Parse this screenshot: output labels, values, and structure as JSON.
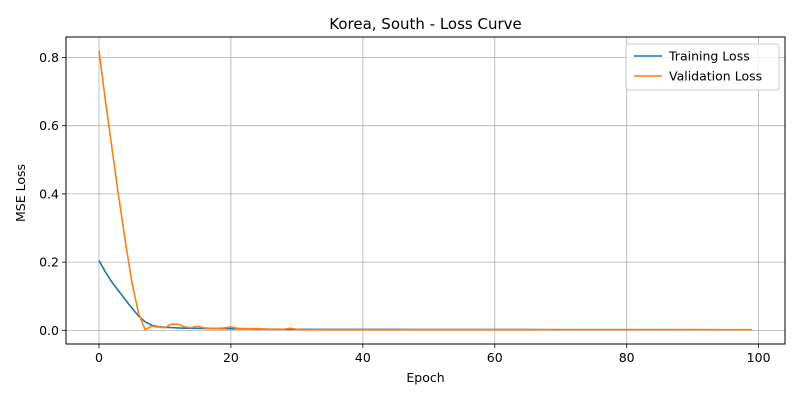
{
  "chart_data": {
    "type": "line",
    "title": "Korea, South - Loss Curve",
    "xlabel": "Epoch",
    "ylabel": "MSE Loss",
    "xlim": [
      -5,
      104
    ],
    "ylim": [
      -0.04,
      0.86
    ],
    "xticks": [
      0,
      20,
      40,
      60,
      80,
      100
    ],
    "yticks": [
      0.0,
      0.2,
      0.4,
      0.6,
      0.8
    ],
    "xtick_labels": [
      "0",
      "20",
      "40",
      "60",
      "80",
      "100"
    ],
    "ytick_labels": [
      "0.0",
      "0.2",
      "0.4",
      "0.6",
      "0.8"
    ],
    "grid": true,
    "legend": "top-right",
    "series": [
      {
        "name": "Training Loss",
        "color": "#1f77b4",
        "x": [
          0,
          1,
          2,
          3,
          4,
          5,
          6,
          7,
          8,
          9,
          10,
          11,
          12,
          13,
          14,
          15,
          16,
          17,
          18,
          19,
          20,
          21,
          22,
          23,
          24,
          25,
          26,
          27,
          28,
          29,
          30,
          35,
          40,
          45,
          50,
          55,
          60,
          65,
          70,
          75,
          80,
          85,
          90,
          95,
          99
        ],
        "y": [
          0.205,
          0.17,
          0.14,
          0.115,
          0.09,
          0.065,
          0.042,
          0.025,
          0.015,
          0.011,
          0.009,
          0.008,
          0.007,
          0.0065,
          0.006,
          0.0058,
          0.0055,
          0.0052,
          0.005,
          0.0048,
          0.0046,
          0.0044,
          0.0042,
          0.004,
          0.0038,
          0.0036,
          0.0034,
          0.0033,
          0.0032,
          0.0031,
          0.003,
          0.0028,
          0.0027,
          0.0026,
          0.0025,
          0.0024,
          0.0023,
          0.0022,
          0.0021,
          0.002,
          0.002,
          0.0019,
          0.0019,
          0.0018,
          0.0018
        ]
      },
      {
        "name": "Validation Loss",
        "color": "#ff7f0e",
        "x": [
          0,
          1,
          2,
          3,
          4,
          5,
          6,
          7,
          8,
          9,
          10,
          11,
          12,
          13,
          14,
          15,
          16,
          17,
          18,
          19,
          20,
          21,
          22,
          23,
          24,
          25,
          26,
          27,
          28,
          29,
          30,
          31,
          32,
          35,
          40,
          45,
          50,
          55,
          60,
          65,
          70,
          75,
          80,
          85,
          90,
          95,
          99
        ],
        "y": [
          0.82,
          0.67,
          0.53,
          0.39,
          0.26,
          0.14,
          0.05,
          0.002,
          0.012,
          0.01,
          0.008,
          0.018,
          0.018,
          0.01,
          0.008,
          0.012,
          0.007,
          0.006,
          0.006,
          0.007,
          0.01,
          0.006,
          0.005,
          0.005,
          0.005,
          0.004,
          0.003,
          0.003,
          0.003,
          0.006,
          0.003,
          0.002,
          0.002,
          0.002,
          0.002,
          0.002,
          0.002,
          0.002,
          0.002,
          0.002,
          0.002,
          0.002,
          0.002,
          0.002,
          0.002,
          0.002,
          0.002
        ]
      }
    ]
  }
}
